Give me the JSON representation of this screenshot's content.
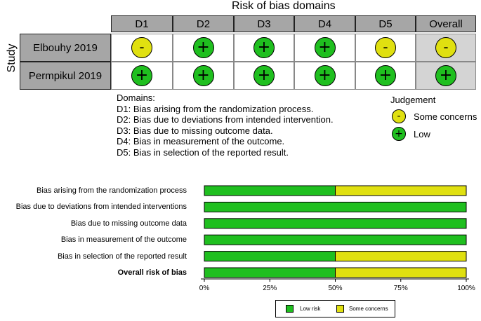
{
  "chart_data": [
    {
      "type": "table",
      "title": "Risk of bias domains",
      "row_axis_label": "Study",
      "columns": [
        "D1",
        "D2",
        "D3",
        "D4",
        "D5",
        "Overall"
      ],
      "rows": [
        {
          "study": "Elbouhy 2019",
          "judgements": [
            "some",
            "low",
            "low",
            "low",
            "some",
            "some"
          ]
        },
        {
          "study": "Permpikul 2019",
          "judgements": [
            "low",
            "low",
            "low",
            "low",
            "low",
            "low"
          ]
        }
      ],
      "symbols": {
        "low": "+",
        "some": "-"
      },
      "domains_title": "Domains:",
      "domains": [
        "D1: Bias arising from the randomization process.",
        "D2: Bias due to deviations from intended intervention.",
        "D3: Bias due to missing outcome data.",
        "D4: Bias in measurement of the outcome.",
        "D5: Bias in selection of the reported result."
      ],
      "judgement_title": "Judgement",
      "judgement_legend": [
        {
          "key": "some",
          "symbol": "-",
          "label": "Some concerns"
        },
        {
          "key": "low",
          "symbol": "+",
          "label": "Low"
        }
      ]
    },
    {
      "type": "bar",
      "orientation": "horizontal",
      "stacked": true,
      "categories": [
        "Bias arising from the randomization process",
        "Bias due to deviations from intended interventions",
        "Bias due to missing outcome data",
        "Bias in measurement of the outcome",
        "Bias in selection of the reported result",
        "Overall risk of bias"
      ],
      "bold_category": "Overall risk of bias",
      "series": [
        {
          "name": "Low risk",
          "values": [
            50,
            100,
            100,
            100,
            50,
            50
          ]
        },
        {
          "name": "Some concerns",
          "values": [
            50,
            0,
            0,
            0,
            50,
            50
          ]
        }
      ],
      "xlim": [
        0,
        100
      ],
      "xticks": [
        "0%",
        "25%",
        "50%",
        "75%",
        "100%"
      ],
      "legend": "bottom"
    }
  ],
  "colors": {
    "low": "#1fbf1f",
    "some": "#e0e010",
    "header": "#a6a6a6",
    "overall_cell": "#d4d4d4"
  }
}
